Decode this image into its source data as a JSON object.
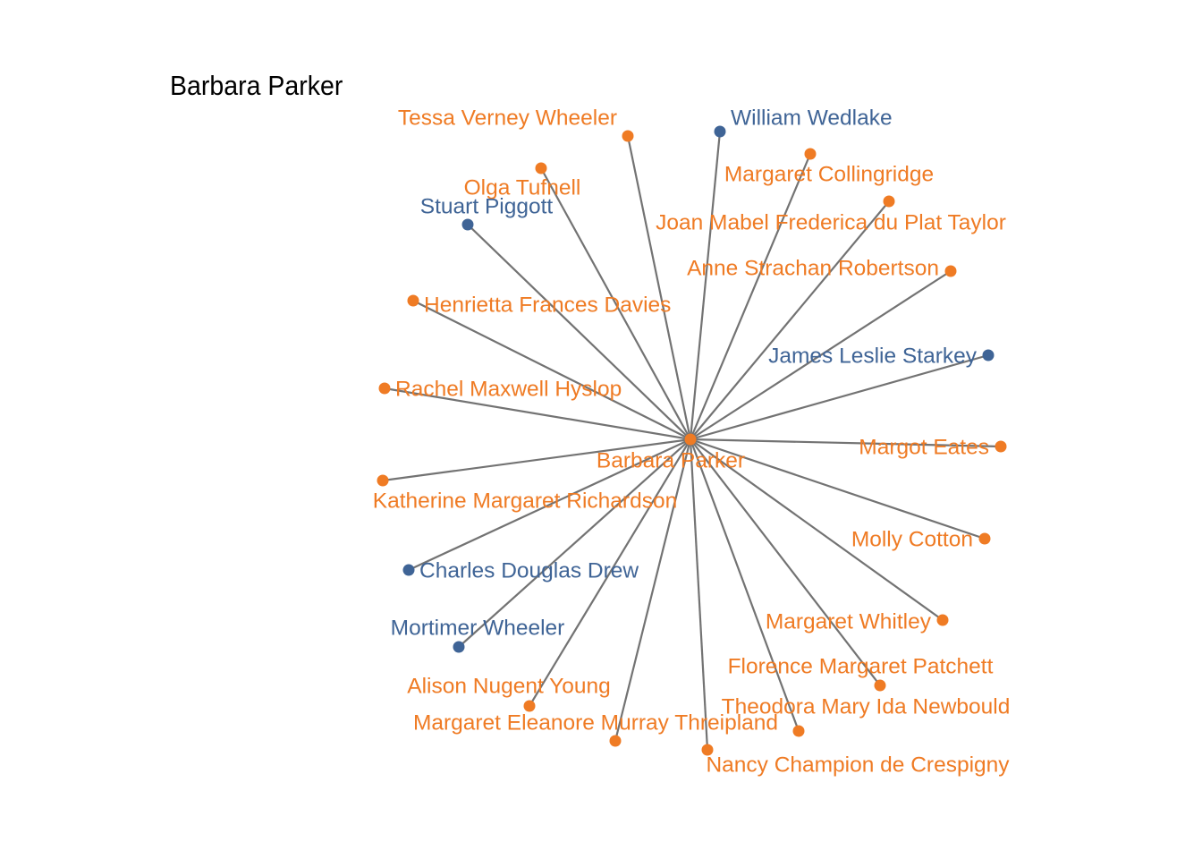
{
  "title": "Barbara Parker",
  "colors": {
    "female": "#EF7B24",
    "male": "#3F6496",
    "edge": "#737373"
  },
  "center": {
    "name": "Barbara Parker",
    "group": "female"
  },
  "nodes": [
    {
      "name": "Tessa Verney Wheeler",
      "group": "female"
    },
    {
      "name": "William Wedlake",
      "group": "male"
    },
    {
      "name": "Margaret Collingridge",
      "group": "female"
    },
    {
      "name": "Olga Tufnell",
      "group": "female"
    },
    {
      "name": "Stuart Piggott",
      "group": "male"
    },
    {
      "name": "Joan Mabel Frederica du Plat Taylor",
      "group": "female"
    },
    {
      "name": "Anne Strachan Robertson",
      "group": "female"
    },
    {
      "name": "Henrietta Frances Davies",
      "group": "female"
    },
    {
      "name": "James Leslie Starkey",
      "group": "male"
    },
    {
      "name": "Rachel Maxwell Hyslop",
      "group": "female"
    },
    {
      "name": "Margot Eates",
      "group": "female"
    },
    {
      "name": "Katherine Margaret Richardson",
      "group": "female"
    },
    {
      "name": "Molly Cotton",
      "group": "female"
    },
    {
      "name": "Charles Douglas Drew",
      "group": "male"
    },
    {
      "name": "Mortimer Wheeler",
      "group": "male"
    },
    {
      "name": "Margaret Whitley",
      "group": "female"
    },
    {
      "name": "Florence Margaret Patchett",
      "group": "female"
    },
    {
      "name": "Alison Nugent Young",
      "group": "female"
    },
    {
      "name": "Theodora Mary Ida Newbould",
      "group": "female"
    },
    {
      "name": "Margaret Eleanore Murray Threipland",
      "group": "female"
    },
    {
      "name": "Nancy Champion de Crespigny",
      "group": "female"
    }
  ]
}
